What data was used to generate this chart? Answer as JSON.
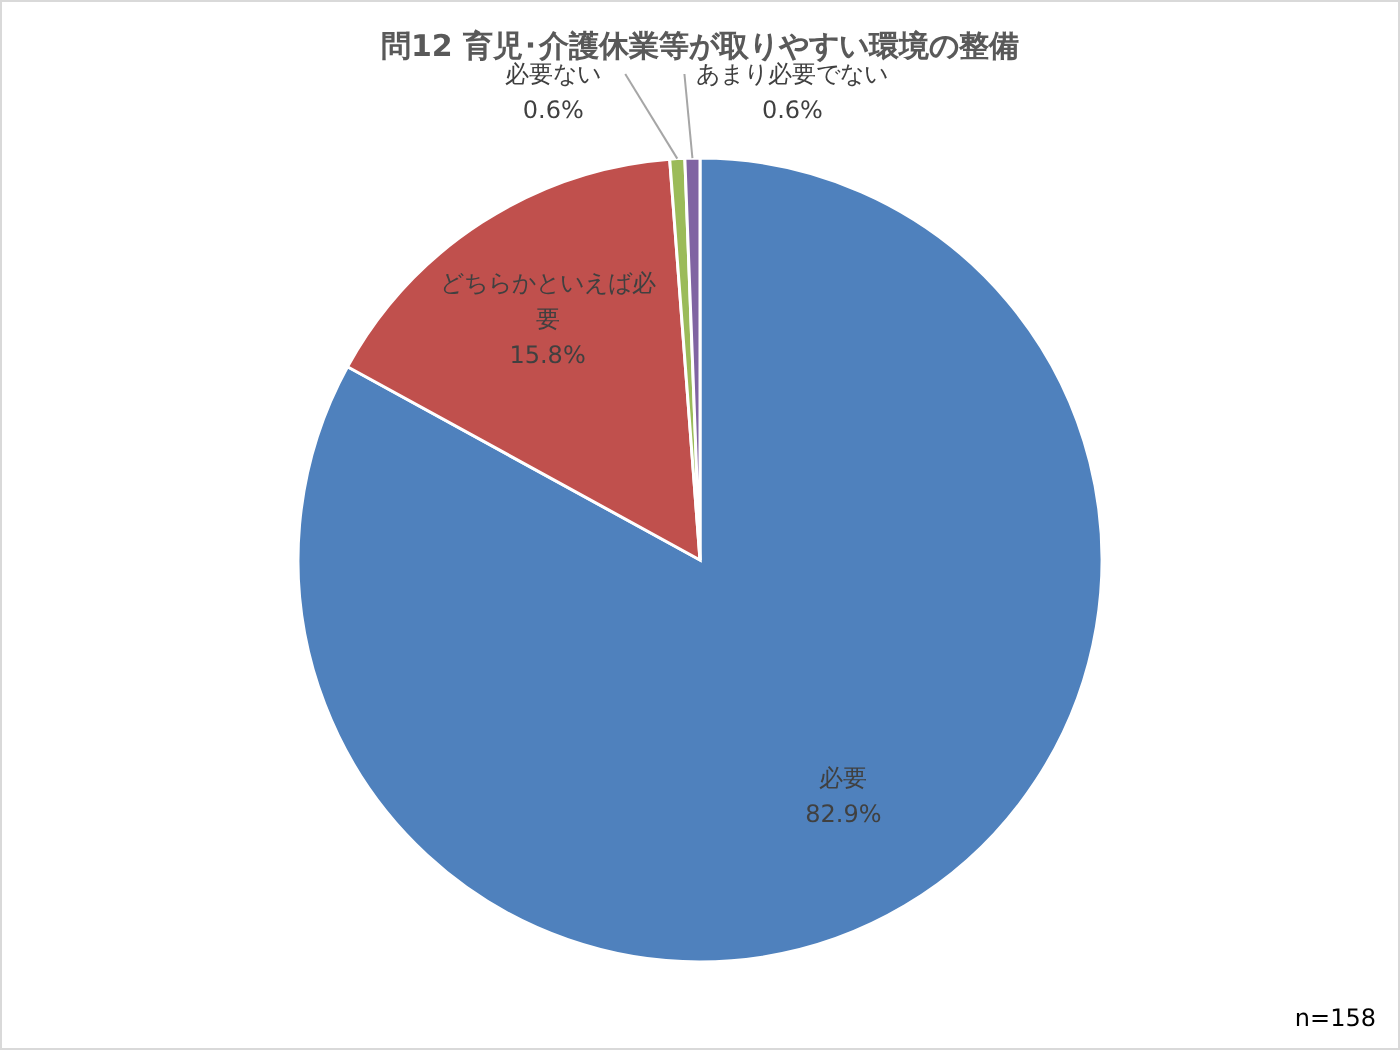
{
  "chart_data": {
    "type": "pie",
    "title": "問12  育児･介護休業等が取りやすい環境の整備",
    "categories": [
      "必要",
      "どちらかといえば必要",
      "必要ない",
      "あまり必要でない"
    ],
    "values": [
      82.9,
      15.8,
      0.6,
      0.6
    ],
    "colors": [
      "#4f81bd",
      "#c0504d",
      "#9bbb59",
      "#8064a2"
    ],
    "value_labels": [
      "82.9%",
      "15.8%",
      "0.6%",
      "0.6%"
    ],
    "annotations": [
      "n=158"
    ]
  }
}
